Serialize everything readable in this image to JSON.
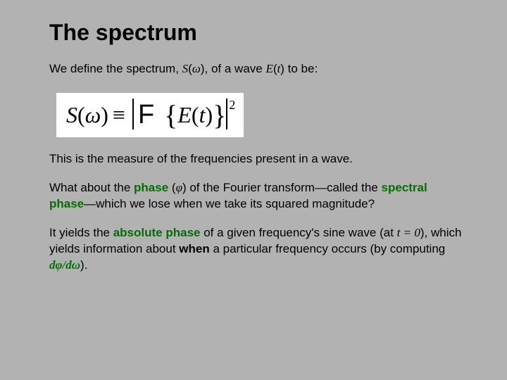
{
  "title": "The spectrum",
  "p1a": "We define the spectrum, ",
  "p1_Somega": "S",
  "p1_paren_open": "(",
  "p1_omega": "ω",
  "p1_paren_close": ")",
  "p1b": ", of a wave ",
  "p1_Et": "E",
  "p1_paren_open2": "(",
  "p1_t": "t",
  "p1_paren_close2": ")",
  "p1c": " to be:",
  "formula_S": "S",
  "formula_open": "(",
  "formula_omega": "ω",
  "formula_close": ")",
  "formula_equiv": "≡",
  "formula_F": "F",
  "formula_lbrace": "{",
  "formula_E": "E",
  "formula_open2": "(",
  "formula_tt": "t",
  "formula_close2": ")",
  "formula_rbrace": "}",
  "formula_sq": "2",
  "p2": "This is the measure of the frequencies present in a wave.",
  "p3a": "What about the ",
  "p3_phase": "phase",
  "p3b": " (",
  "p3_phi": "φ",
  "p3c": ") of the Fourier transform—called the ",
  "p3_spectral": "spectral phase",
  "p3d": "—which we lose when we take its squared magnitude?",
  "p4a": "It yields the ",
  "p4_abs": "absolute phase",
  "p4b": " of a given frequency's sine wave (at ",
  "p4_t": "t",
  "p4_eq": " = 0",
  "p4c": "), which yields information about ",
  "p4_when": "when",
  "p4d": " a particular frequency occurs (by computing ",
  "p4_dphi": "dφ",
  "p4_slash": "/",
  "p4_domega": "dω",
  "p4e": ").",
  "colors": {
    "background": "#b2b2b2",
    "formula_bg": "#ffffff",
    "accent_green": "#007000",
    "text": "#000000"
  }
}
